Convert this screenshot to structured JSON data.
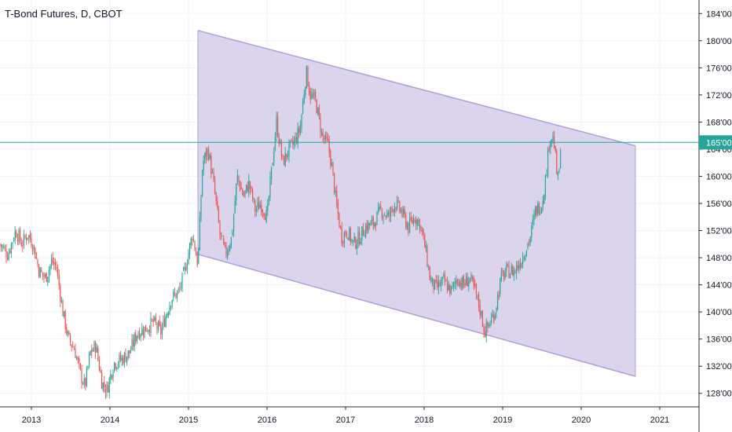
{
  "header": {
    "title": "T-Bond Futures, D, CBOT"
  },
  "colors": {
    "background": "#ffffff",
    "grid": "#f0f3fa",
    "axis_line": "#2a2e39",
    "up_candle": "#26a69a",
    "down_candle": "#ef5350",
    "channel_fill": "#d4cce9",
    "channel_line": "#b39ddb",
    "price_line": "#26a69a",
    "price_badge": "#26a69a"
  },
  "price_line": {
    "value": 165,
    "label": "165'00"
  },
  "chart_data": {
    "type": "line",
    "title": "T-Bond Futures, D, CBOT",
    "x_ticks": [
      "2013",
      "2014",
      "2015",
      "2016",
      "2017",
      "2018",
      "2019",
      "2020",
      "2021"
    ],
    "y_ticks": [
      "128'00",
      "132'00",
      "136'00",
      "140'00",
      "144'00",
      "148'00",
      "152'00",
      "156'00",
      "160'00",
      "164'00",
      "168'00",
      "172'00",
      "176'00",
      "180'00",
      "184'00"
    ],
    "xlim": [
      2012.6,
      2021.5
    ],
    "ylim": [
      126,
      186
    ],
    "grid": true,
    "series": [
      {
        "values": [
          {
            "x": 2012.6,
            "y": 150
          },
          {
            "x": 2012.7,
            "y": 148.5
          },
          {
            "x": 2012.8,
            "y": 152
          },
          {
            "x": 2012.88,
            "y": 150
          },
          {
            "x": 2012.95,
            "y": 151.5
          },
          {
            "x": 2013.02,
            "y": 150
          },
          {
            "x": 2013.1,
            "y": 146
          },
          {
            "x": 2013.18,
            "y": 145
          },
          {
            "x": 2013.26,
            "y": 147.5
          },
          {
            "x": 2013.32,
            "y": 146.5
          },
          {
            "x": 2013.4,
            "y": 140
          },
          {
            "x": 2013.47,
            "y": 136
          },
          {
            "x": 2013.55,
            "y": 134.5
          },
          {
            "x": 2013.62,
            "y": 131
          },
          {
            "x": 2013.68,
            "y": 129
          },
          {
            "x": 2013.75,
            "y": 134
          },
          {
            "x": 2013.82,
            "y": 135
          },
          {
            "x": 2013.9,
            "y": 129.5
          },
          {
            "x": 2013.96,
            "y": 128.5
          },
          {
            "x": 2014.05,
            "y": 132.5
          },
          {
            "x": 2014.15,
            "y": 133
          },
          {
            "x": 2014.25,
            "y": 134
          },
          {
            "x": 2014.35,
            "y": 137
          },
          {
            "x": 2014.45,
            "y": 137.5
          },
          {
            "x": 2014.55,
            "y": 138.5
          },
          {
            "x": 2014.65,
            "y": 137
          },
          {
            "x": 2014.7,
            "y": 139
          },
          {
            "x": 2014.78,
            "y": 142
          },
          {
            "x": 2014.88,
            "y": 143
          },
          {
            "x": 2014.95,
            "y": 146
          },
          {
            "x": 2015.05,
            "y": 151.5
          },
          {
            "x": 2015.12,
            "y": 147
          },
          {
            "x": 2015.18,
            "y": 162
          },
          {
            "x": 2015.25,
            "y": 164
          },
          {
            "x": 2015.33,
            "y": 158
          },
          {
            "x": 2015.4,
            "y": 151.5
          },
          {
            "x": 2015.47,
            "y": 148.5
          },
          {
            "x": 2015.55,
            "y": 151
          },
          {
            "x": 2015.62,
            "y": 160
          },
          {
            "x": 2015.7,
            "y": 157
          },
          {
            "x": 2015.77,
            "y": 159
          },
          {
            "x": 2015.85,
            "y": 155
          },
          {
            "x": 2015.92,
            "y": 156
          },
          {
            "x": 2016.0,
            "y": 154
          },
          {
            "x": 2016.05,
            "y": 160
          },
          {
            "x": 2016.12,
            "y": 168
          },
          {
            "x": 2016.2,
            "y": 162
          },
          {
            "x": 2016.28,
            "y": 164
          },
          {
            "x": 2016.35,
            "y": 165
          },
          {
            "x": 2016.42,
            "y": 167
          },
          {
            "x": 2016.5,
            "y": 175.5
          },
          {
            "x": 2016.55,
            "y": 172
          },
          {
            "x": 2016.62,
            "y": 171
          },
          {
            "x": 2016.7,
            "y": 166
          },
          {
            "x": 2016.78,
            "y": 164.5
          },
          {
            "x": 2016.83,
            "y": 161
          },
          {
            "x": 2016.88,
            "y": 156
          },
          {
            "x": 2016.95,
            "y": 151
          },
          {
            "x": 2017.02,
            "y": 152
          },
          {
            "x": 2017.1,
            "y": 150
          },
          {
            "x": 2017.18,
            "y": 151
          },
          {
            "x": 2017.25,
            "y": 152.5
          },
          {
            "x": 2017.35,
            "y": 153
          },
          {
            "x": 2017.45,
            "y": 155
          },
          {
            "x": 2017.55,
            "y": 154
          },
          {
            "x": 2017.62,
            "y": 156
          },
          {
            "x": 2017.7,
            "y": 155
          },
          {
            "x": 2017.8,
            "y": 152.5
          },
          {
            "x": 2017.88,
            "y": 154
          },
          {
            "x": 2017.95,
            "y": 153
          },
          {
            "x": 2018.02,
            "y": 149
          },
          {
            "x": 2018.08,
            "y": 144.5
          },
          {
            "x": 2018.15,
            "y": 143.5
          },
          {
            "x": 2018.25,
            "y": 144.5
          },
          {
            "x": 2018.35,
            "y": 143
          },
          {
            "x": 2018.42,
            "y": 145
          },
          {
            "x": 2018.5,
            "y": 144
          },
          {
            "x": 2018.58,
            "y": 145
          },
          {
            "x": 2018.65,
            "y": 143
          },
          {
            "x": 2018.72,
            "y": 140
          },
          {
            "x": 2018.77,
            "y": 137
          },
          {
            "x": 2018.82,
            "y": 138
          },
          {
            "x": 2018.9,
            "y": 140
          },
          {
            "x": 2018.98,
            "y": 145
          },
          {
            "x": 2019.05,
            "y": 146
          },
          {
            "x": 2019.15,
            "y": 146
          },
          {
            "x": 2019.25,
            "y": 148
          },
          {
            "x": 2019.35,
            "y": 151
          },
          {
            "x": 2019.42,
            "y": 155
          },
          {
            "x": 2019.5,
            "y": 156
          },
          {
            "x": 2019.55,
            "y": 160
          },
          {
            "x": 2019.6,
            "y": 166
          },
          {
            "x": 2019.65,
            "y": 165.5
          },
          {
            "x": 2019.7,
            "y": 159
          },
          {
            "x": 2019.74,
            "y": 163.5
          }
        ]
      }
    ],
    "channel": {
      "start_x": 2015.12,
      "end_x": 2020.69,
      "upper_start": 181.5,
      "upper_end": 164.5,
      "lower_start": 148.5,
      "lower_end": 130.5
    }
  }
}
